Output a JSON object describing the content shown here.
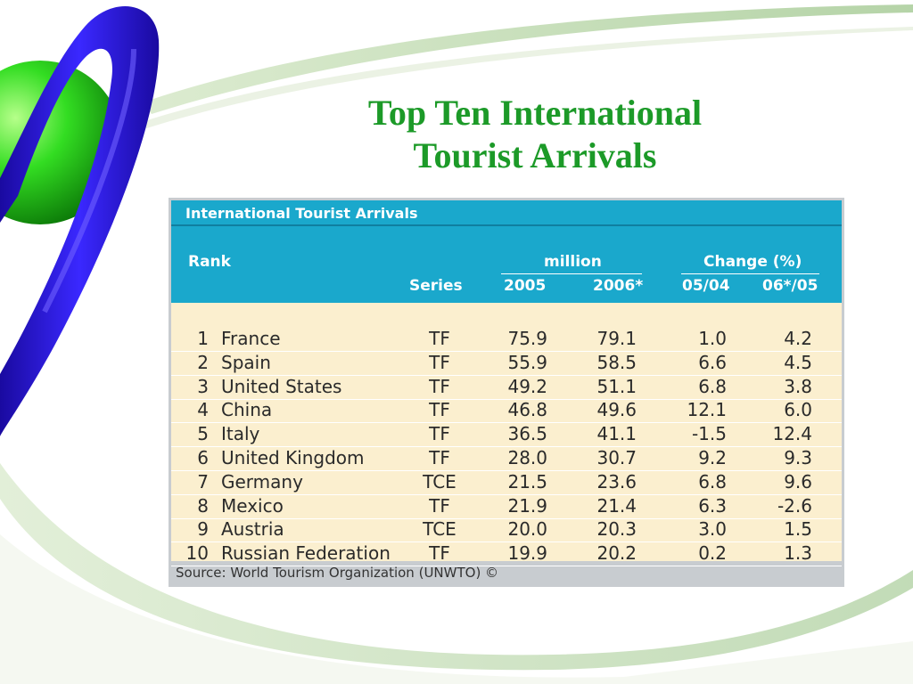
{
  "slide": {
    "title_line1": "Top Ten International",
    "title_line2": "Tourist Arrivals"
  },
  "table": {
    "caption": "International Tourist  Arrivals",
    "rank_header": "Rank",
    "series_header": "Series",
    "million_header": "million",
    "change_header": "Change (%)",
    "col_2005": "2005",
    "col_2006": "2006*",
    "col_0504": "05/04",
    "col_0605": "06*/05",
    "rows": [
      {
        "rank": "1",
        "country": "France",
        "series": "TF",
        "y2005": "75.9",
        "y2006": "79.1",
        "ch0504": "1.0",
        "ch0605": "4.2"
      },
      {
        "rank": "2",
        "country": "Spain",
        "series": "TF",
        "y2005": "55.9",
        "y2006": "58.5",
        "ch0504": "6.6",
        "ch0605": "4.5"
      },
      {
        "rank": "3",
        "country": "United States",
        "series": "TF",
        "y2005": "49.2",
        "y2006": "51.1",
        "ch0504": "6.8",
        "ch0605": "3.8"
      },
      {
        "rank": "4",
        "country": "China",
        "series": "TF",
        "y2005": "46.8",
        "y2006": "49.6",
        "ch0504": "12.1",
        "ch0605": "6.0"
      },
      {
        "rank": "5",
        "country": "Italy",
        "series": "TF",
        "y2005": "36.5",
        "y2006": "41.1",
        "ch0504": "-1.5",
        "ch0605": "12.4"
      },
      {
        "rank": "6",
        "country": "United Kingdom",
        "series": "TF",
        "y2005": "28.0",
        "y2006": "30.7",
        "ch0504": "9.2",
        "ch0605": "9.3"
      },
      {
        "rank": "7",
        "country": "Germany",
        "series": "TCE",
        "y2005": "21.5",
        "y2006": "23.6",
        "ch0504": "6.8",
        "ch0605": "9.6"
      },
      {
        "rank": "8",
        "country": "Mexico",
        "series": "TF",
        "y2005": "21.9",
        "y2006": "21.4",
        "ch0504": "6.3",
        "ch0605": "-2.6"
      },
      {
        "rank": "9",
        "country": "Austria",
        "series": "TCE",
        "y2005": "20.0",
        "y2006": "20.3",
        "ch0504": "3.0",
        "ch0605": "1.5"
      },
      {
        "rank": "10",
        "country": "Russian Federation",
        "series": "TF",
        "y2005": "19.9",
        "y2006": "20.2",
        "ch0504": "0.2",
        "ch0605": "1.3"
      }
    ],
    "source": "Source: World Tourism Organization (UNWTO) ©"
  },
  "colors": {
    "title": "#1c9a28",
    "header_bg": "#1aa8cc",
    "body_bg": "#fbefcf",
    "sphere": "#33dd22",
    "ring": "#2a18d8",
    "swoosh": "#b8d8a8"
  }
}
